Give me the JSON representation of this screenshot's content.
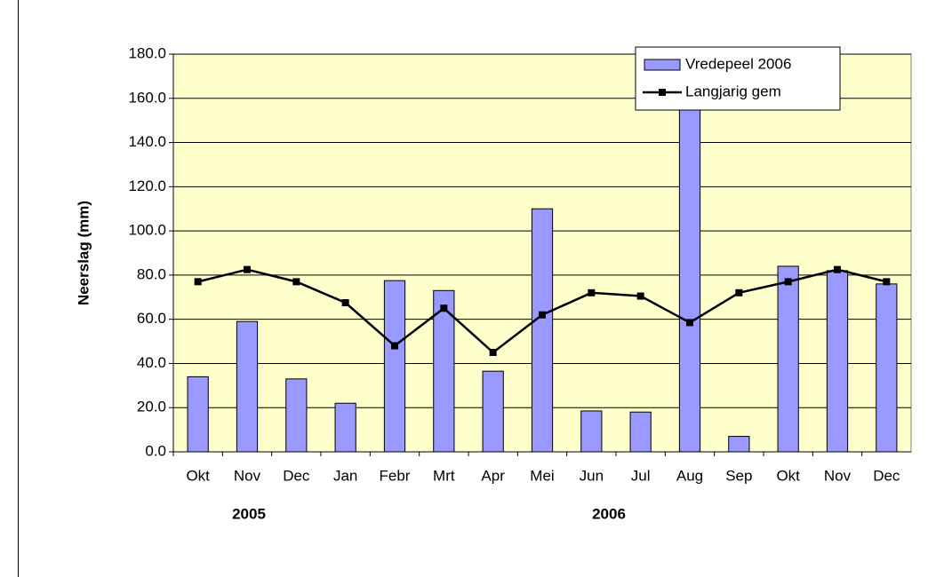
{
  "chart_data": {
    "type": "bar-line",
    "y_label": "Neerslag (mm)",
    "categories": [
      "Okt",
      "Nov",
      "Dec",
      "Jan",
      "Febr",
      "Mrt",
      "Apr",
      "Mei",
      "Jun",
      "Jul",
      "Aug",
      "Sep",
      "Okt",
      "Nov",
      "Dec"
    ],
    "year_labels": [
      "2005",
      "2006"
    ],
    "series": [
      {
        "name": "Vredepeel 2006",
        "type": "bar",
        "color": "#9999ff",
        "values": [
          34,
          59,
          33,
          22,
          77.5,
          73,
          36.5,
          110,
          18.5,
          18,
          178,
          7,
          84,
          82,
          76
        ]
      },
      {
        "name": "Langjarig gem",
        "type": "line",
        "color": "#000000",
        "values": [
          77,
          82.5,
          77,
          67.5,
          48,
          65,
          45,
          62,
          72,
          70.5,
          58.5,
          72,
          77,
          82.5,
          77
        ]
      }
    ],
    "ylim": [
      0,
      180
    ],
    "yticks": [
      {
        "value": 0,
        "label": "0.0"
      },
      {
        "value": 20,
        "label": "20.0"
      },
      {
        "value": 40,
        "label": "40.0"
      },
      {
        "value": 60,
        "label": "60.0"
      },
      {
        "value": 80,
        "label": "80.0"
      },
      {
        "value": 100,
        "label": "100.0"
      },
      {
        "value": 120,
        "label": "120.0"
      },
      {
        "value": 140,
        "label": "140.0"
      },
      {
        "value": 160,
        "label": "160.0"
      },
      {
        "value": 180,
        "label": "180.0"
      }
    ],
    "grid": true,
    "legend": "top-right",
    "background": "#ffffcc"
  }
}
